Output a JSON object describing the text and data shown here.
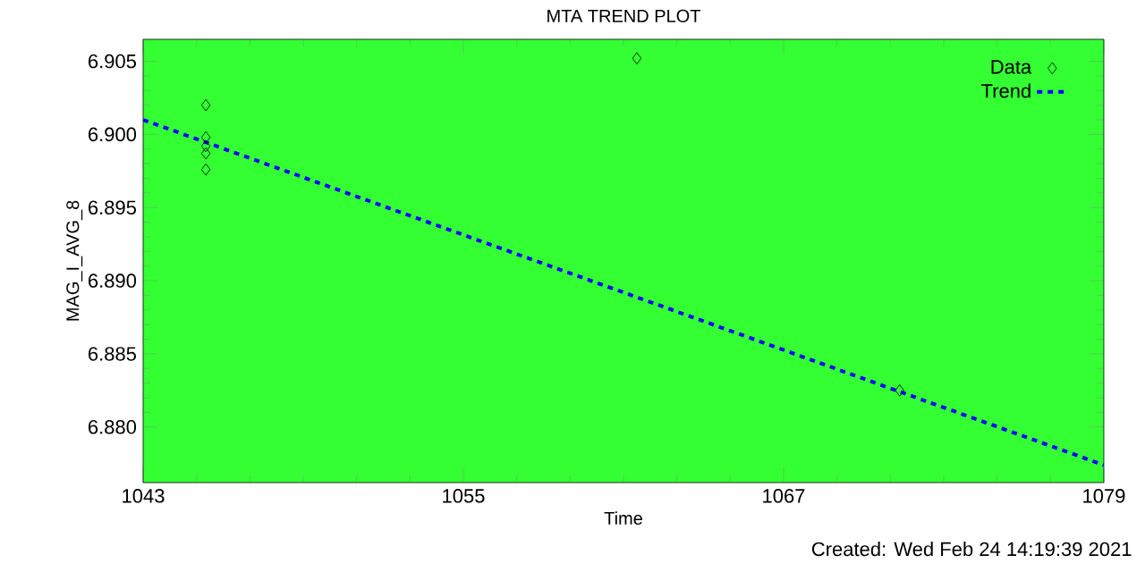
{
  "chart_data": {
    "type": "scatter",
    "title": "MTA TREND PLOT",
    "xlabel": "Time",
    "ylabel": "MAG_I_AVG_8",
    "annotations": [
      "Created: Wed Feb 24 14:19:39 2021"
    ],
    "xlim": [
      1043,
      1079
    ],
    "xticks": [
      1043,
      1055,
      1067,
      1079
    ],
    "ylim": [
      6.8762,
      6.9065
    ],
    "yticks": [
      {
        "value": 6.88,
        "label": "6.880"
      },
      {
        "value": 6.885,
        "label": "6.885"
      },
      {
        "value": 6.89,
        "label": "6.890"
      },
      {
        "value": 6.895,
        "label": "6.895"
      },
      {
        "value": 6.9,
        "label": "6.900"
      },
      {
        "value": 6.905,
        "label": "6.905"
      }
    ],
    "legend": "top right",
    "series": [
      {
        "name": "Data",
        "type": "scatter",
        "marker": "diamond",
        "color": "#000000",
        "x": [
          1045.35,
          1045.35,
          1045.35,
          1045.35,
          1045.35,
          1061.5,
          1071.35
        ],
        "values": [
          6.902,
          6.8998,
          6.8992,
          6.8987,
          6.8976,
          6.9052,
          6.8825
        ]
      },
      {
        "name": "Trend",
        "type": "line",
        "line_style": "dashed",
        "color": "#0000ff",
        "x": [
          1043,
          1079
        ],
        "values": [
          6.901,
          6.8774
        ]
      }
    ]
  }
}
